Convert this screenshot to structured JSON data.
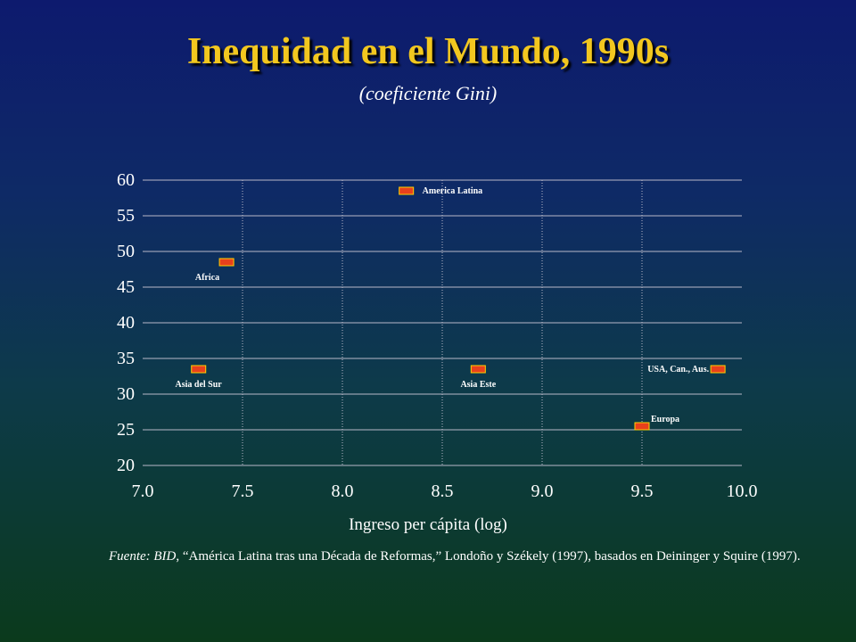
{
  "title": "Inequidad en el Mundo, 1990s",
  "subtitle": "(coeficiente Gini)",
  "xlabel": "Ingreso per cápita (log)",
  "source": {
    "prefix": "Fuente: BID",
    "text": ", “América Latina tras una Década de Reformas,” Londoño y Székely (1997), basados en Deininger y Squire (1997)."
  },
  "colors": {
    "marker_fill": "#e8401c",
    "marker_stroke": "#ffd200",
    "grid": "#b8b8c8",
    "title": "#f2c71f"
  },
  "chart_data": {
    "type": "scatter",
    "xlim": [
      7.0,
      10.0
    ],
    "ylim": [
      20,
      60
    ],
    "xticks": [
      "7.0",
      "7.5",
      "8.0",
      "8.5",
      "9.0",
      "9.5",
      "10.0"
    ],
    "yticks": [
      "20",
      "25",
      "30",
      "35",
      "40",
      "45",
      "50",
      "55",
      "60"
    ],
    "grid": true,
    "points": [
      {
        "label": "America Latina",
        "x": 8.32,
        "y": 58.5
      },
      {
        "label": "Africa",
        "x": 7.42,
        "y": 48.5
      },
      {
        "label": "Asia del Sur",
        "x": 7.28,
        "y": 33.5
      },
      {
        "label": "Asia Este",
        "x": 8.68,
        "y": 33.5
      },
      {
        "label": "USA, Can., Aus.",
        "x": 9.88,
        "y": 33.5
      },
      {
        "label": "Europa",
        "x": 9.5,
        "y": 25.5
      }
    ]
  }
}
